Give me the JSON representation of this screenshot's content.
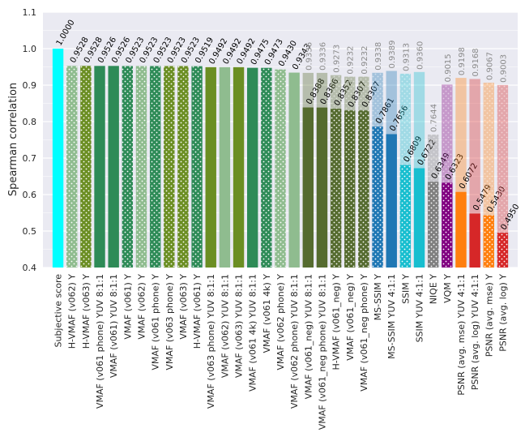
{
  "chart_data": {
    "type": "bar",
    "ylabel": "Spearman correlation",
    "ylim": [
      0.4,
      1.1
    ],
    "yticks": [
      0.4,
      0.5,
      0.6,
      0.7,
      0.8,
      0.9,
      1.0,
      1.1
    ],
    "ytick_labels": [
      "0.4",
      "0.5",
      "0.6",
      "0.7",
      "0.8",
      "0.9",
      "1.0",
      "1.1"
    ],
    "grid": true,
    "bars": [
      {
        "label": "Subjective score",
        "value": 1.0,
        "value_label": "1.0000",
        "color": "#00ffff",
        "dotted": false
      },
      {
        "label": "H-VMAF (v062) Y",
        "value": 0.9528,
        "value_label": "0.9528",
        "color": "#8fbc8f",
        "dotted": true
      },
      {
        "label": "H-VMAF (v063) Y",
        "value": 0.9528,
        "value_label": "0.9528",
        "color": "#6b8e23",
        "dotted": true
      },
      {
        "label": "VMAF (v061 phone) YUV 8:1:1",
        "value": 0.9526,
        "value_label": "0.9526",
        "color": "#2e8b57",
        "dotted": false
      },
      {
        "label": "VMAF (v061) YUV 8:1:1",
        "value": 0.9526,
        "value_label": "0.9526",
        "color": "#2e8b57",
        "dotted": false
      },
      {
        "label": "VMAF (v061) Y",
        "value": 0.9523,
        "value_label": "0.9523",
        "color": "#2e8b57",
        "dotted": true
      },
      {
        "label": "VMAF (v062) Y",
        "value": 0.9523,
        "value_label": "0.9523",
        "color": "#8fbc8f",
        "dotted": true
      },
      {
        "label": "VMAF (v061 phone) Y",
        "value": 0.9523,
        "value_label": "0.9523",
        "color": "#2e8b57",
        "dotted": true
      },
      {
        "label": "VMAF (v063 phone) Y",
        "value": 0.9523,
        "value_label": "0.9523",
        "color": "#6b8e23",
        "dotted": true
      },
      {
        "label": "VMAF (v063) Y",
        "value": 0.9523,
        "value_label": "0.9523",
        "color": "#6b8e23",
        "dotted": true
      },
      {
        "label": "H-VMAF (v061) Y",
        "value": 0.9519,
        "value_label": "0.9519",
        "color": "#2e8b57",
        "dotted": true
      },
      {
        "label": "VMAF (v063 phone) YUV 8:1:1",
        "value": 0.9492,
        "value_label": "0.9492",
        "color": "#6b8e23",
        "dotted": false
      },
      {
        "label": "VMAF (v062) YUV 8:1:1",
        "value": 0.9492,
        "value_label": "0.9492",
        "color": "#8fbc8f",
        "dotted": false
      },
      {
        "label": "VMAF (v063) YUV 8:1:1",
        "value": 0.9492,
        "value_label": "0.9492",
        "color": "#6b8e23",
        "dotted": false
      },
      {
        "label": "VMAF (v061 4k) YUV 8:1:1",
        "value": 0.9475,
        "value_label": "0.9475",
        "color": "#2e8b57",
        "dotted": false
      },
      {
        "label": "VMAF (v061 4k) Y",
        "value": 0.9473,
        "value_label": "0.9473",
        "color": "#2e8b57",
        "dotted": true
      },
      {
        "label": "VMAF (v062 phone) Y",
        "value": 0.943,
        "value_label": "0.9430",
        "color": "#8fbc8f",
        "dotted": true
      },
      {
        "label": "VMAF (v062 phone) YUV 8:1:1",
        "value": 0.9343,
        "value_label": "0.9343",
        "color": "#8fbc8f",
        "dotted": false
      },
      {
        "label": "VMAF (v061_neg) YUV 8:1:1",
        "value": 0.8388,
        "value_label": "0.8388",
        "color": "#556b2f",
        "dotted": false,
        "light_value": 0.9336,
        "light_label": "0.9336"
      },
      {
        "label": "VMAF (v061_neg phone) YUV 8:1:1",
        "value": 0.8386,
        "value_label": "0.8386",
        "color": "#556b2f",
        "dotted": false,
        "light_value": 0.9336,
        "light_label": "0.9336"
      },
      {
        "label": "H-VMAF (v061_neg) Y",
        "value": 0.8352,
        "value_label": "0.8352",
        "color": "#556b2f",
        "dotted": true,
        "light_value": 0.9273,
        "light_label": "0.9273"
      },
      {
        "label": "VMAF (v061_neg) Y",
        "value": 0.8307,
        "value_label": "0.8307",
        "color": "#556b2f",
        "dotted": true,
        "light_value": 0.9232,
        "light_label": "0.9232"
      },
      {
        "label": "VMAF (v061_neg phone) Y",
        "value": 0.8307,
        "value_label": "0.8307",
        "color": "#556b2f",
        "dotted": true,
        "light_value": 0.9232,
        "light_label": "0.9232"
      },
      {
        "label": "MS-SSIM Y",
        "value": 0.7861,
        "value_label": "0.7861",
        "color": "#1f77b4",
        "dotted": true,
        "light_value": 0.9338,
        "light_label": "0.9338"
      },
      {
        "label": "MS-SSIM YUV 4:1:1",
        "value": 0.7656,
        "value_label": "0.7656",
        "color": "#1f77b4",
        "dotted": false,
        "light_value": 0.9389,
        "light_label": "0.9389"
      },
      {
        "label": "SSIM Y",
        "value": 0.6809,
        "value_label": "0.6809",
        "color": "#17becf",
        "dotted": true,
        "light_value": 0.9313,
        "light_label": "0.9313"
      },
      {
        "label": "SSIM YUV 4:1:1",
        "value": 0.6722,
        "value_label": "0.6722",
        "color": "#17becf",
        "dotted": false,
        "light_value": 0.936,
        "light_label": "0.9360"
      },
      {
        "label": "NIQE Y",
        "value": 0.6349,
        "value_label": "0.6349",
        "color": "#7f7f7f",
        "dotted": true,
        "light_value": 0.7644,
        "light_label": "0.7644"
      },
      {
        "label": "VQM Y",
        "value": 0.6323,
        "value_label": "0.6323",
        "color": "#800080",
        "dotted": true,
        "light_value": 0.9015,
        "light_label": "0.9015"
      },
      {
        "label": "PSNR (avg. mse) YUV 4:1:1",
        "value": 0.6072,
        "value_label": "0.6072",
        "color": "#ff7f0e",
        "dotted": false,
        "light_value": 0.9198,
        "light_label": "0.9198"
      },
      {
        "label": "PSNR (avg. log) YUV 4:1:1",
        "value": 0.5479,
        "value_label": "0.5479",
        "color": "#d62728",
        "dotted": false,
        "light_value": 0.9168,
        "light_label": "0.9168"
      },
      {
        "label": "PSNR (avg. mse) Y",
        "value": 0.543,
        "value_label": "0.5430",
        "color": "#ff7f0e",
        "dotted": true,
        "light_value": 0.9067,
        "light_label": "0.9067"
      },
      {
        "label": "PSNR (avg. log) Y",
        "value": 0.495,
        "value_label": "0.4950",
        "color": "#d62728",
        "dotted": true,
        "light_value": 0.9003,
        "light_label": "0.9003"
      }
    ]
  }
}
